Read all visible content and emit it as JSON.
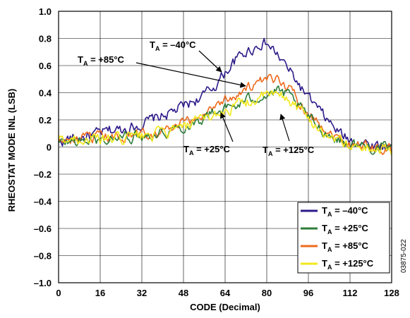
{
  "chart_data": {
    "type": "line",
    "xlabel": "CODE (Decimal)",
    "ylabel": "RHEOSTAT MODE INL (LSB)",
    "xlim": [
      0,
      128
    ],
    "ylim": [
      -1.0,
      1.0
    ],
    "xticks": [
      0,
      16,
      32,
      48,
      64,
      80,
      96,
      112,
      128
    ],
    "yticks": [
      -1.0,
      -0.8,
      -0.6,
      -0.4,
      -0.2,
      0,
      0.2,
      0.4,
      0.6,
      0.8,
      1.0
    ],
    "xtick_labels": [
      "0",
      "16",
      "32",
      "48",
      "64",
      "80",
      "96",
      "112",
      "128"
    ],
    "ytick_labels": [
      "–1.0",
      "–0.8",
      "–0.6",
      "–0.4",
      "–0.2",
      "0",
      "0.2",
      "0.4",
      "0.6",
      "0.8",
      "1.0"
    ],
    "grid": true,
    "legend_position": "bottom-right",
    "figure_id": "03875-022",
    "annotations": [
      {
        "label": "–40°C",
        "series": 0
      },
      {
        "label": "+85°C",
        "series": 2
      },
      {
        "label": "+25°C",
        "series": 1
      },
      {
        "label": "+125°C",
        "series": 3
      }
    ],
    "series": [
      {
        "name": "–40°C",
        "color": "#2e1a8a",
        "keypoints": [
          [
            0,
            0.04
          ],
          [
            4,
            0.06
          ],
          [
            8,
            0.07
          ],
          [
            12,
            0.08
          ],
          [
            16,
            0.1
          ],
          [
            20,
            0.12
          ],
          [
            24,
            0.13
          ],
          [
            28,
            0.15
          ],
          [
            32,
            0.17
          ],
          [
            36,
            0.2
          ],
          [
            40,
            0.23
          ],
          [
            44,
            0.26
          ],
          [
            48,
            0.3
          ],
          [
            52,
            0.34
          ],
          [
            56,
            0.38
          ],
          [
            60,
            0.45
          ],
          [
            64,
            0.55
          ],
          [
            68,
            0.64
          ],
          [
            72,
            0.7
          ],
          [
            76,
            0.74
          ],
          [
            78,
            0.77
          ],
          [
            80,
            0.76
          ],
          [
            82,
            0.72
          ],
          [
            84,
            0.68
          ],
          [
            88,
            0.58
          ],
          [
            92,
            0.47
          ],
          [
            96,
            0.36
          ],
          [
            100,
            0.27
          ],
          [
            104,
            0.18
          ],
          [
            108,
            0.1
          ],
          [
            112,
            0.05
          ],
          [
            116,
            0.04
          ],
          [
            120,
            0.02
          ],
          [
            124,
            0.01
          ],
          [
            128,
            0.01
          ]
        ]
      },
      {
        "name": "+25°C",
        "color": "#2e7d3a",
        "keypoints": [
          [
            0,
            0.02
          ],
          [
            4,
            0.04
          ],
          [
            8,
            0.04
          ],
          [
            12,
            0.05
          ],
          [
            16,
            0.05
          ],
          [
            20,
            0.06
          ],
          [
            24,
            0.07
          ],
          [
            28,
            0.08
          ],
          [
            32,
            0.09
          ],
          [
            36,
            0.1
          ],
          [
            40,
            0.11
          ],
          [
            44,
            0.13
          ],
          [
            48,
            0.15
          ],
          [
            52,
            0.18
          ],
          [
            56,
            0.22
          ],
          [
            60,
            0.26
          ],
          [
            64,
            0.28
          ],
          [
            68,
            0.3
          ],
          [
            72,
            0.34
          ],
          [
            76,
            0.37
          ],
          [
            80,
            0.39
          ],
          [
            84,
            0.41
          ],
          [
            88,
            0.38
          ],
          [
            92,
            0.3
          ],
          [
            96,
            0.22
          ],
          [
            100,
            0.15
          ],
          [
            104,
            0.09
          ],
          [
            108,
            0.05
          ],
          [
            112,
            0.02
          ],
          [
            116,
            0.01
          ],
          [
            120,
            0.0
          ],
          [
            124,
            -0.01
          ],
          [
            128,
            -0.02
          ]
        ]
      },
      {
        "name": "+85°C",
        "color": "#ee6a1c",
        "keypoints": [
          [
            0,
            0.03
          ],
          [
            4,
            0.05
          ],
          [
            8,
            0.05
          ],
          [
            12,
            0.06
          ],
          [
            16,
            0.06
          ],
          [
            20,
            0.07
          ],
          [
            24,
            0.08
          ],
          [
            28,
            0.09
          ],
          [
            32,
            0.1
          ],
          [
            36,
            0.11
          ],
          [
            40,
            0.12
          ],
          [
            44,
            0.14
          ],
          [
            48,
            0.17
          ],
          [
            52,
            0.2
          ],
          [
            56,
            0.25
          ],
          [
            60,
            0.31
          ],
          [
            64,
            0.35
          ],
          [
            68,
            0.39
          ],
          [
            72,
            0.43
          ],
          [
            76,
            0.46
          ],
          [
            80,
            0.48
          ],
          [
            84,
            0.5
          ],
          [
            86,
            0.49
          ],
          [
            88,
            0.45
          ],
          [
            92,
            0.35
          ],
          [
            96,
            0.26
          ],
          [
            100,
            0.18
          ],
          [
            104,
            0.11
          ],
          [
            108,
            0.06
          ],
          [
            112,
            0.03
          ],
          [
            116,
            0.02
          ],
          [
            120,
            0.0
          ],
          [
            124,
            -0.01
          ],
          [
            128,
            -0.01
          ]
        ]
      },
      {
        "name": "+125°C",
        "color": "#f2e81c",
        "keypoints": [
          [
            0,
            0.05
          ],
          [
            4,
            0.06
          ],
          [
            8,
            0.06
          ],
          [
            12,
            0.06
          ],
          [
            16,
            0.05
          ],
          [
            20,
            0.06
          ],
          [
            24,
            0.06
          ],
          [
            28,
            0.07
          ],
          [
            32,
            0.08
          ],
          [
            36,
            0.09
          ],
          [
            40,
            0.1
          ],
          [
            44,
            0.12
          ],
          [
            48,
            0.14
          ],
          [
            52,
            0.17
          ],
          [
            56,
            0.2
          ],
          [
            60,
            0.24
          ],
          [
            64,
            0.27
          ],
          [
            68,
            0.3
          ],
          [
            72,
            0.33
          ],
          [
            76,
            0.35
          ],
          [
            80,
            0.38
          ],
          [
            84,
            0.38
          ],
          [
            88,
            0.36
          ],
          [
            92,
            0.29
          ],
          [
            96,
            0.21
          ],
          [
            100,
            0.14
          ],
          [
            104,
            0.08
          ],
          [
            108,
            0.04
          ],
          [
            112,
            0.01
          ],
          [
            116,
            0.0
          ],
          [
            120,
            -0.01
          ],
          [
            124,
            -0.02
          ],
          [
            128,
            -0.02
          ]
        ]
      }
    ]
  }
}
